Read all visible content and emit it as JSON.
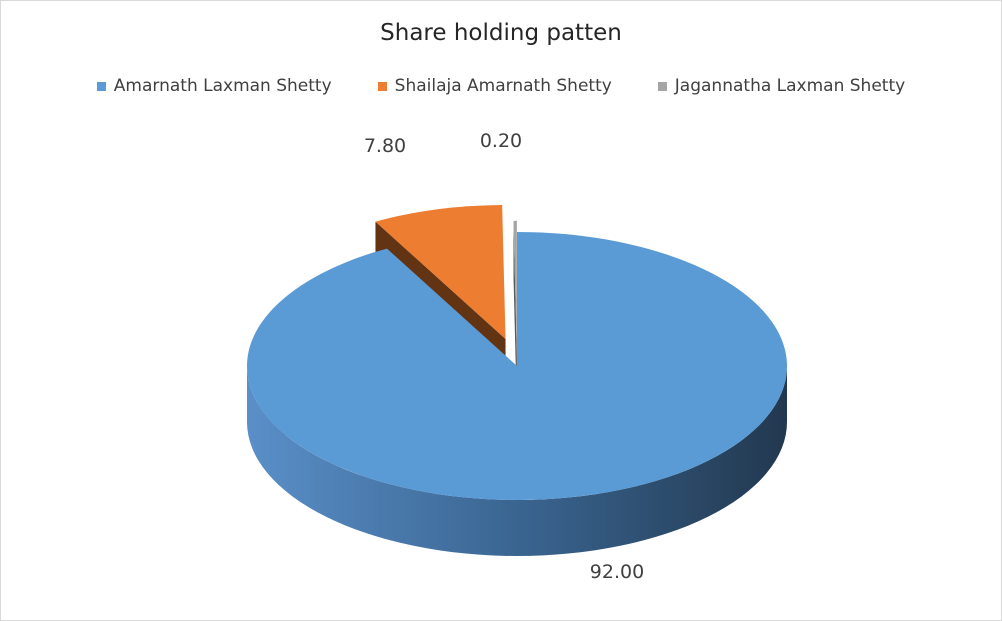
{
  "chart_data": {
    "type": "pie",
    "title": "Share holding patten",
    "legend_position": "top",
    "slices": [
      {
        "label": "Amarnath Laxman Shetty",
        "value": 92.0,
        "display": "92.00",
        "color": "#5b9bd5"
      },
      {
        "label": "Shailaja Amarnath Shetty",
        "value": 7.8,
        "display": "7.80",
        "color": "#ed7d31"
      },
      {
        "label": "Jagannatha Laxman Shetty",
        "value": 0.2,
        "display": "0.20",
        "color": "#a5a5a5"
      }
    ]
  }
}
